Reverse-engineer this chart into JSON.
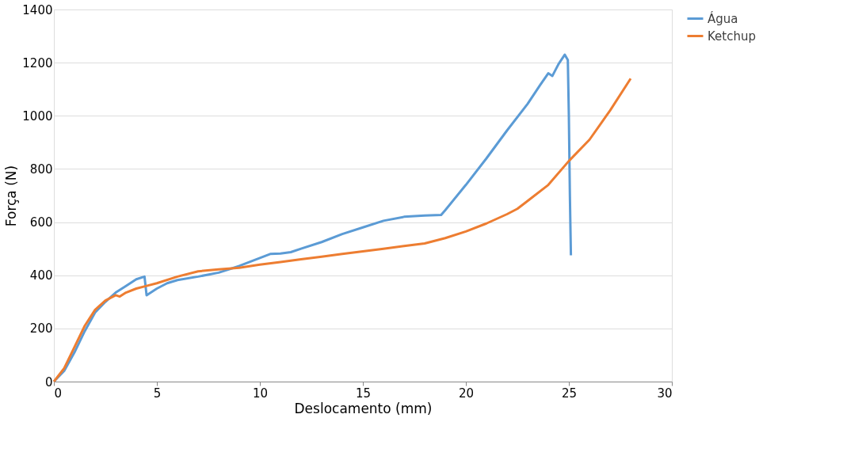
{
  "chart_data": {
    "type": "line",
    "xlabel": "Deslocamento (mm)",
    "ylabel": "Força (N)",
    "xlim": [
      0,
      30
    ],
    "xticks": [
      0,
      5,
      10,
      15,
      20,
      25,
      30
    ],
    "ylim": [
      0,
      1400
    ],
    "yticks": [
      0,
      200,
      400,
      600,
      800,
      1000,
      1200,
      1400
    ],
    "grid": "y",
    "legend": "right",
    "marker": "none",
    "line_style": "solid",
    "series": [
      {
        "name": "Água",
        "color": "#5b9bd5",
        "x": [
          0,
          0.5,
          1,
          1.5,
          2,
          2.5,
          3,
          3.5,
          4,
          4.4,
          4.5,
          5,
          5.5,
          6,
          7,
          8,
          9,
          10,
          10.5,
          11,
          11.5,
          12,
          13,
          14,
          15,
          16,
          17,
          18,
          18.8,
          19,
          20,
          21,
          22,
          23,
          23.6,
          24,
          24.2,
          24.5,
          24.8,
          24.95,
          25,
          25.05,
          25.1
        ],
        "values": [
          0,
          40,
          110,
          190,
          260,
          300,
          335,
          360,
          385,
          395,
          325,
          350,
          370,
          382,
          395,
          410,
          435,
          465,
          480,
          482,
          487,
          500,
          525,
          555,
          580,
          605,
          620,
          625,
          627,
          645,
          740,
          840,
          945,
          1045,
          1115,
          1160,
          1150,
          1195,
          1230,
          1210,
          1000,
          700,
          475
        ]
      },
      {
        "name": "Ketchup",
        "color": "#ed7d31",
        "x": [
          0,
          0.5,
          1,
          1.5,
          2,
          2.5,
          3,
          3.2,
          3.5,
          4,
          4.5,
          5,
          6,
          7,
          8,
          9,
          10,
          11,
          12,
          13,
          14,
          15,
          16,
          17,
          18,
          19,
          20,
          21,
          22,
          22.5,
          23,
          24,
          25,
          26,
          27,
          28
        ],
        "values": [
          0,
          50,
          130,
          210,
          270,
          305,
          325,
          320,
          335,
          350,
          360,
          370,
          395,
          415,
          422,
          428,
          440,
          450,
          460,
          470,
          480,
          490,
          500,
          510,
          520,
          540,
          565,
          595,
          630,
          650,
          680,
          740,
          830,
          910,
          1020,
          1140
        ]
      }
    ]
  }
}
